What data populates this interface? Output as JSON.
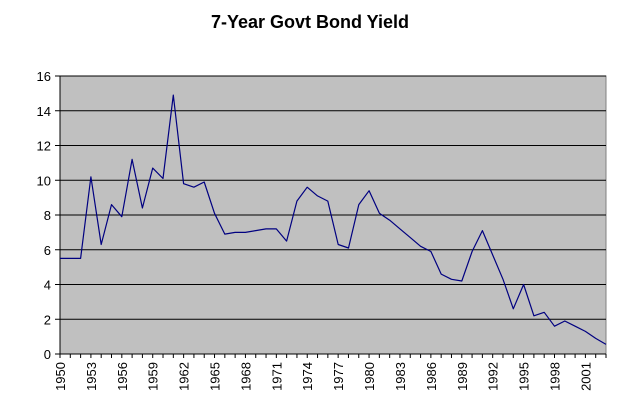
{
  "chart_data": {
    "type": "line",
    "title": "7-Year Govt Bond Yield",
    "xlabel": "",
    "ylabel": "",
    "ylim": [
      0,
      16
    ],
    "yticks": [
      0,
      2,
      4,
      6,
      8,
      10,
      12,
      14,
      16
    ],
    "xlim": [
      1950,
      2003
    ],
    "xticks": [
      1950,
      1953,
      1956,
      1959,
      1962,
      1965,
      1968,
      1971,
      1974,
      1977,
      1980,
      1983,
      1986,
      1989,
      1992,
      1995,
      1998,
      2001
    ],
    "grid": "horizontal",
    "legend": "none",
    "colors": {
      "plot_background": "#c0c0c0",
      "line": "#000080",
      "grid": "#000000"
    },
    "series": [
      {
        "x": [
          1950,
          1951,
          1952,
          1953,
          1954,
          1955,
          1956,
          1957,
          1958,
          1959,
          1960,
          1961,
          1962,
          1963,
          1964,
          1965,
          1966,
          1967,
          1968,
          1969,
          1970,
          1971,
          1972,
          1973,
          1974,
          1975,
          1976,
          1977,
          1978,
          1979,
          1980,
          1981,
          1982,
          1983,
          1984,
          1985,
          1986,
          1987,
          1988,
          1989,
          1990,
          1991,
          1992,
          1993,
          1994,
          1995,
          1996,
          1997,
          1998,
          1999,
          2000,
          2001,
          2002,
          2003
        ],
        "values": [
          5.5,
          5.5,
          5.5,
          10.2,
          6.3,
          8.6,
          7.9,
          11.2,
          8.4,
          10.7,
          10.1,
          14.9,
          9.8,
          9.6,
          9.9,
          8.1,
          6.9,
          7.0,
          7.0,
          7.1,
          7.2,
          7.2,
          6.5,
          8.8,
          9.6,
          9.1,
          8.8,
          6.3,
          6.1,
          8.6,
          9.4,
          8.1,
          7.7,
          7.2,
          6.7,
          6.2,
          5.9,
          4.6,
          4.3,
          4.2,
          5.9,
          7.1,
          5.7,
          4.3,
          2.6,
          4.0,
          2.2,
          2.4,
          1.6,
          1.9,
          1.6,
          1.3,
          0.9,
          0.55
        ]
      }
    ]
  }
}
